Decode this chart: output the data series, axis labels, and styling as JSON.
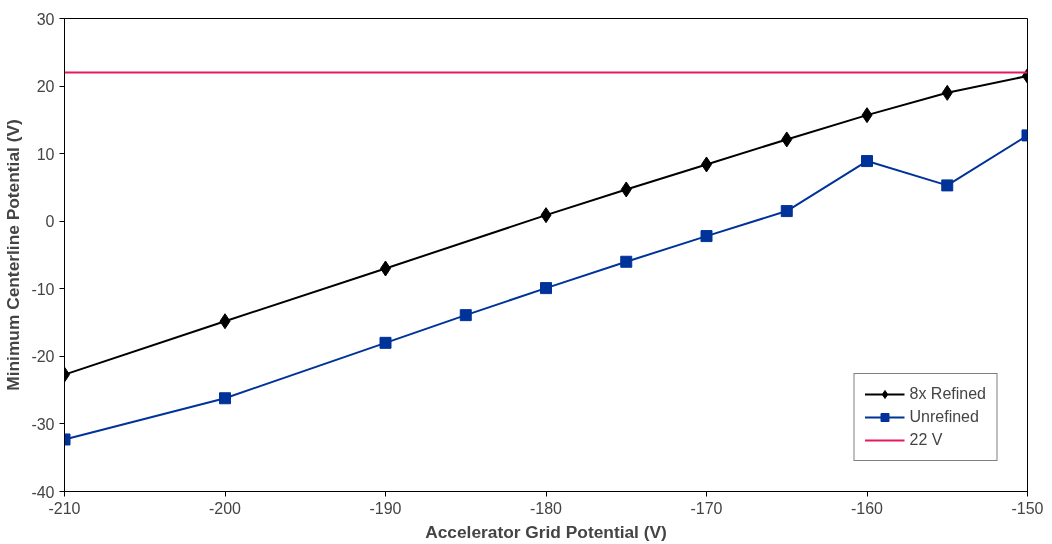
{
  "chart_data": {
    "type": "line",
    "xlabel": "Accelerator Grid Potential (V)",
    "ylabel": "Minimum Centerline Potential (V)",
    "xlim": [
      -210,
      -150
    ],
    "xticks": [
      -210,
      -200,
      -190,
      -180,
      -170,
      -160,
      -150
    ],
    "ylim": [
      -40,
      30
    ],
    "yticks": [
      -40,
      -30,
      -20,
      -10,
      0,
      10,
      20,
      30
    ],
    "grid": false,
    "legend": "bottom right",
    "series": [
      {
        "name": "8x Refined",
        "color": "#000000",
        "marker": "diamond",
        "x": [
          -210,
          -200,
          -190,
          -180,
          -175,
          -170,
          -165,
          -160,
          -155,
          -150
        ],
        "values": [
          -22.7,
          -14.8,
          -7.0,
          0.9,
          4.7,
          8.4,
          12.1,
          15.7,
          19.0,
          21.5
        ]
      },
      {
        "name": "Unrefined",
        "color": "#003399",
        "marker": "square",
        "x": [
          -210,
          -200,
          -190,
          -185,
          -180,
          -175,
          -170,
          -165,
          -160,
          -155,
          -150
        ],
        "values": [
          -32.3,
          -26.2,
          -18.0,
          -13.9,
          -9.9,
          -6.0,
          -2.2,
          1.5,
          8.9,
          5.3,
          12.7
        ]
      },
      {
        "name": "22 V",
        "color": "#e6195a",
        "marker": "none",
        "x": [
          -210,
          -150
        ],
        "values": [
          22,
          22
        ]
      }
    ]
  }
}
